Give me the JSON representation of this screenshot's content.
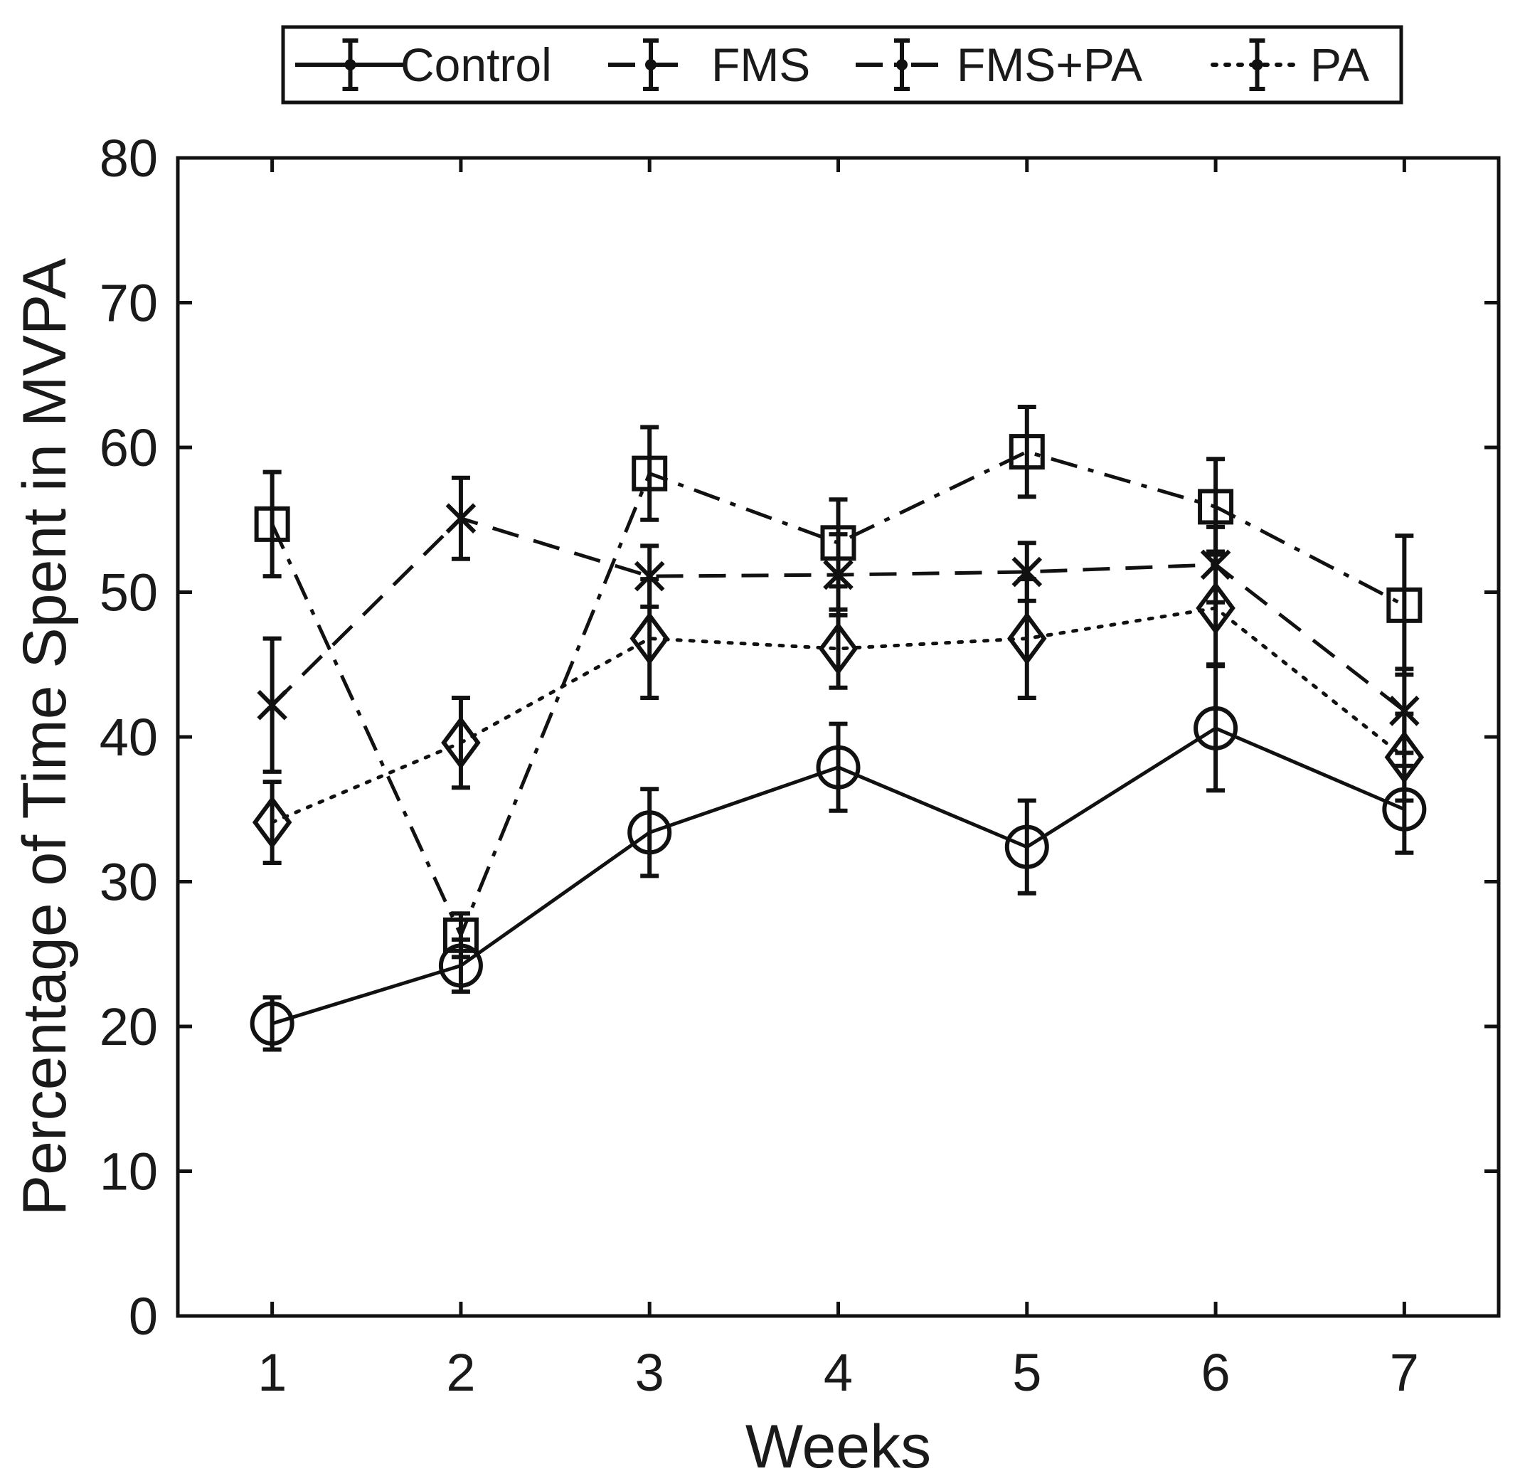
{
  "chart_data": {
    "type": "line",
    "title": "",
    "xlabel": "Weeks",
    "ylabel": "Percentage of Time Spent in MVPA",
    "xlim": [
      0.5,
      7.5
    ],
    "ylim": [
      0,
      80
    ],
    "x_ticks": [
      1,
      2,
      3,
      4,
      5,
      6,
      7
    ],
    "y_ticks": [
      0,
      10,
      20,
      30,
      40,
      50,
      60,
      70,
      80
    ],
    "grid": false,
    "legend_position": "top-outside",
    "x": [
      1,
      2,
      3,
      4,
      5,
      6,
      7
    ],
    "series": [
      {
        "name": "Control",
        "line_style": "solid",
        "marker": "circle",
        "values": [
          20.2,
          24.2,
          33.4,
          37.9,
          32.4,
          40.6,
          35.0
        ],
        "error": [
          1.8,
          1.8,
          3.0,
          3.0,
          3.2,
          4.3,
          3.0
        ]
      },
      {
        "name": "FMS",
        "line_style": "dashed",
        "marker": "x",
        "values": [
          42.2,
          55.1,
          51.1,
          51.2,
          51.4,
          51.9,
          41.8
        ],
        "error": [
          4.6,
          2.8,
          2.1,
          2.8,
          2.0,
          2.6,
          2.9
        ]
      },
      {
        "name": "FMS+PA",
        "line_style": "dashdot",
        "marker": "square",
        "values": [
          54.7,
          26.3,
          58.2,
          53.4,
          59.7,
          55.9,
          49.1
        ],
        "error": [
          3.6,
          1.5,
          3.2,
          3.0,
          3.1,
          3.3,
          4.8
        ]
      },
      {
        "name": "PA",
        "line_style": "dotted",
        "marker": "diamond",
        "values": [
          34.1,
          39.6,
          46.8,
          46.1,
          46.8,
          48.9,
          38.6
        ],
        "error": [
          2.8,
          3.1,
          4.1,
          2.7,
          4.1,
          3.9,
          3.0
        ]
      }
    ],
    "colors": {
      "line": "#111111",
      "background": "#ffffff"
    }
  }
}
